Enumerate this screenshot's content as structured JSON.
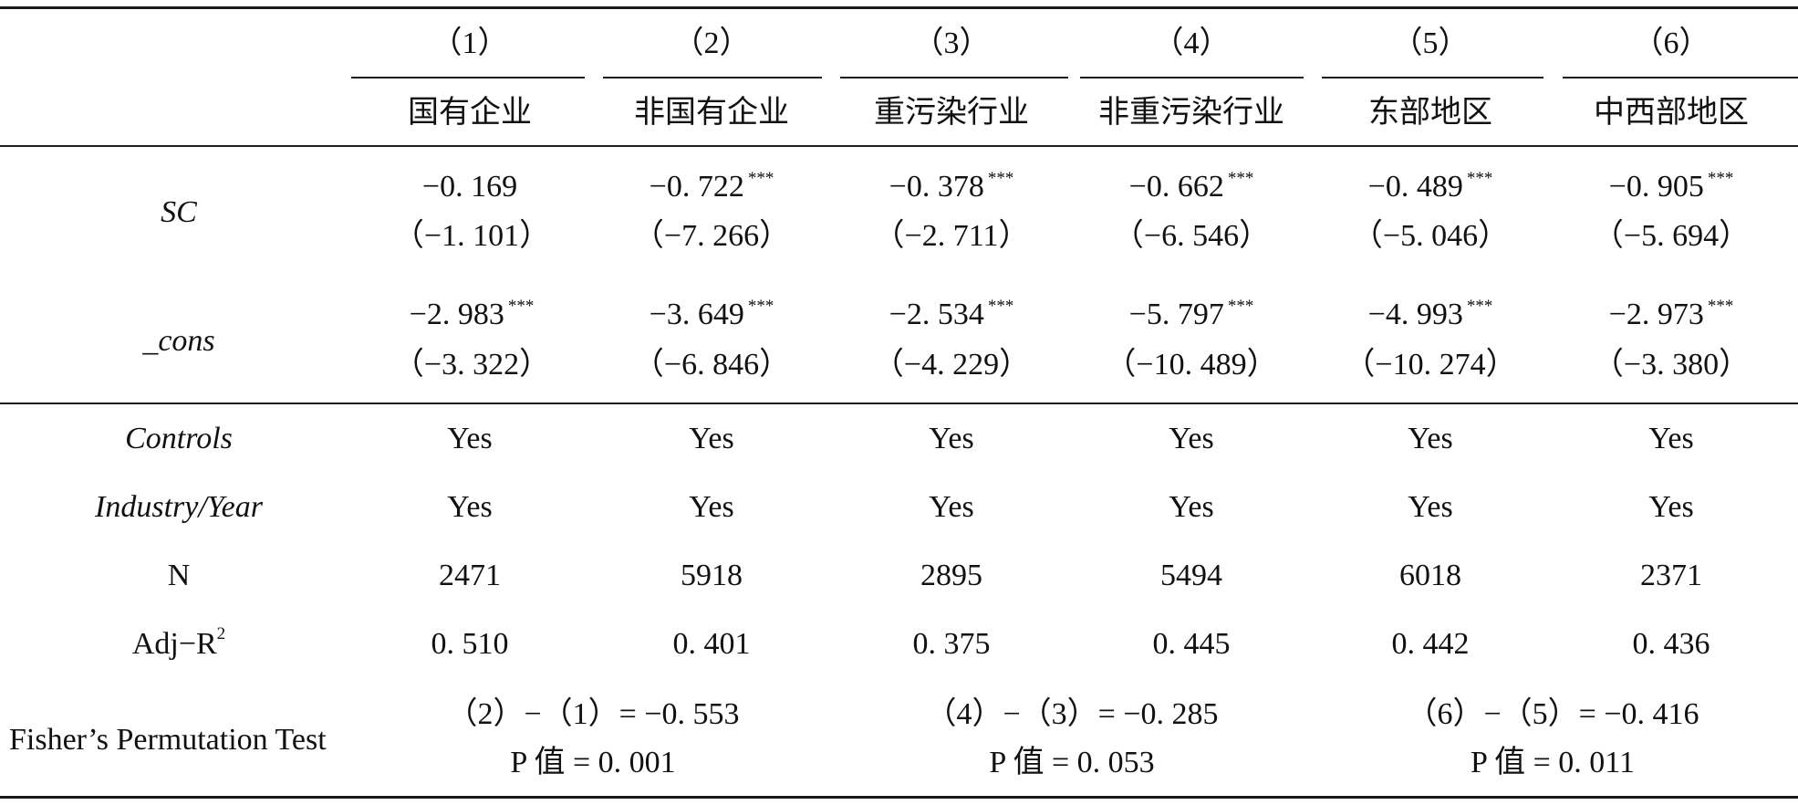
{
  "columns": [
    {
      "number": "（1）",
      "label": "国有企业"
    },
    {
      "number": "（2）",
      "label": "非国有企业"
    },
    {
      "number": "（3）",
      "label": "重污染行业"
    },
    {
      "number": "（4）",
      "label": "非重污染行业"
    },
    {
      "number": "（5）",
      "label": "东部地区"
    },
    {
      "number": "（6）",
      "label": "中西部地区"
    }
  ],
  "rows": {
    "sc": {
      "label": "SC",
      "coef": [
        "−0. 169",
        "−0. 722",
        "−0. 378",
        "−0. 662",
        "−0. 489",
        "−0. 905"
      ],
      "stars": [
        "",
        "***",
        "***",
        "***",
        "***",
        "***"
      ],
      "t": [
        "（−1. 101）",
        "（−7. 266）",
        "（−2. 711）",
        "（−6. 546）",
        "（−5. 046）",
        "（−5. 694）"
      ]
    },
    "cons": {
      "label": "_cons",
      "coef": [
        "−2. 983",
        "−3. 649",
        "−2. 534",
        "−5. 797",
        "−4. 993",
        "−2. 973"
      ],
      "stars": [
        "***",
        "***",
        "***",
        "***",
        "***",
        "***"
      ],
      "t": [
        "（−3. 322）",
        "（−6. 846）",
        "（−4. 229）",
        "（−10. 489）",
        "（−10. 274）",
        "（−3. 380）"
      ]
    },
    "controls": {
      "label": "Controls",
      "values": [
        "Yes",
        "Yes",
        "Yes",
        "Yes",
        "Yes",
        "Yes"
      ]
    },
    "industry_year": {
      "label": "Industry/Year",
      "values": [
        "Yes",
        "Yes",
        "Yes",
        "Yes",
        "Yes",
        "Yes"
      ]
    },
    "n": {
      "label": "N",
      "values": [
        "2471",
        "5918",
        "2895",
        "5494",
        "6018",
        "2371"
      ]
    },
    "adj_r2": {
      "label": "Adj−R",
      "label_sup": "2",
      "values": [
        "0. 510",
        "0. 401",
        "0. 375",
        "0. 445",
        "0. 442",
        "0. 436"
      ]
    },
    "fisher": {
      "label": "Fisher’s Permutation Test",
      "groups": [
        {
          "diff": "（2）−（1）= −0. 553",
          "p": "P 值 = 0. 001"
        },
        {
          "diff": "（4）−（3）= −0. 285",
          "p": "P 值 = 0. 053"
        },
        {
          "diff": "（6）−（5）= −0. 416",
          "p": "P 值 = 0. 011"
        }
      ]
    }
  }
}
